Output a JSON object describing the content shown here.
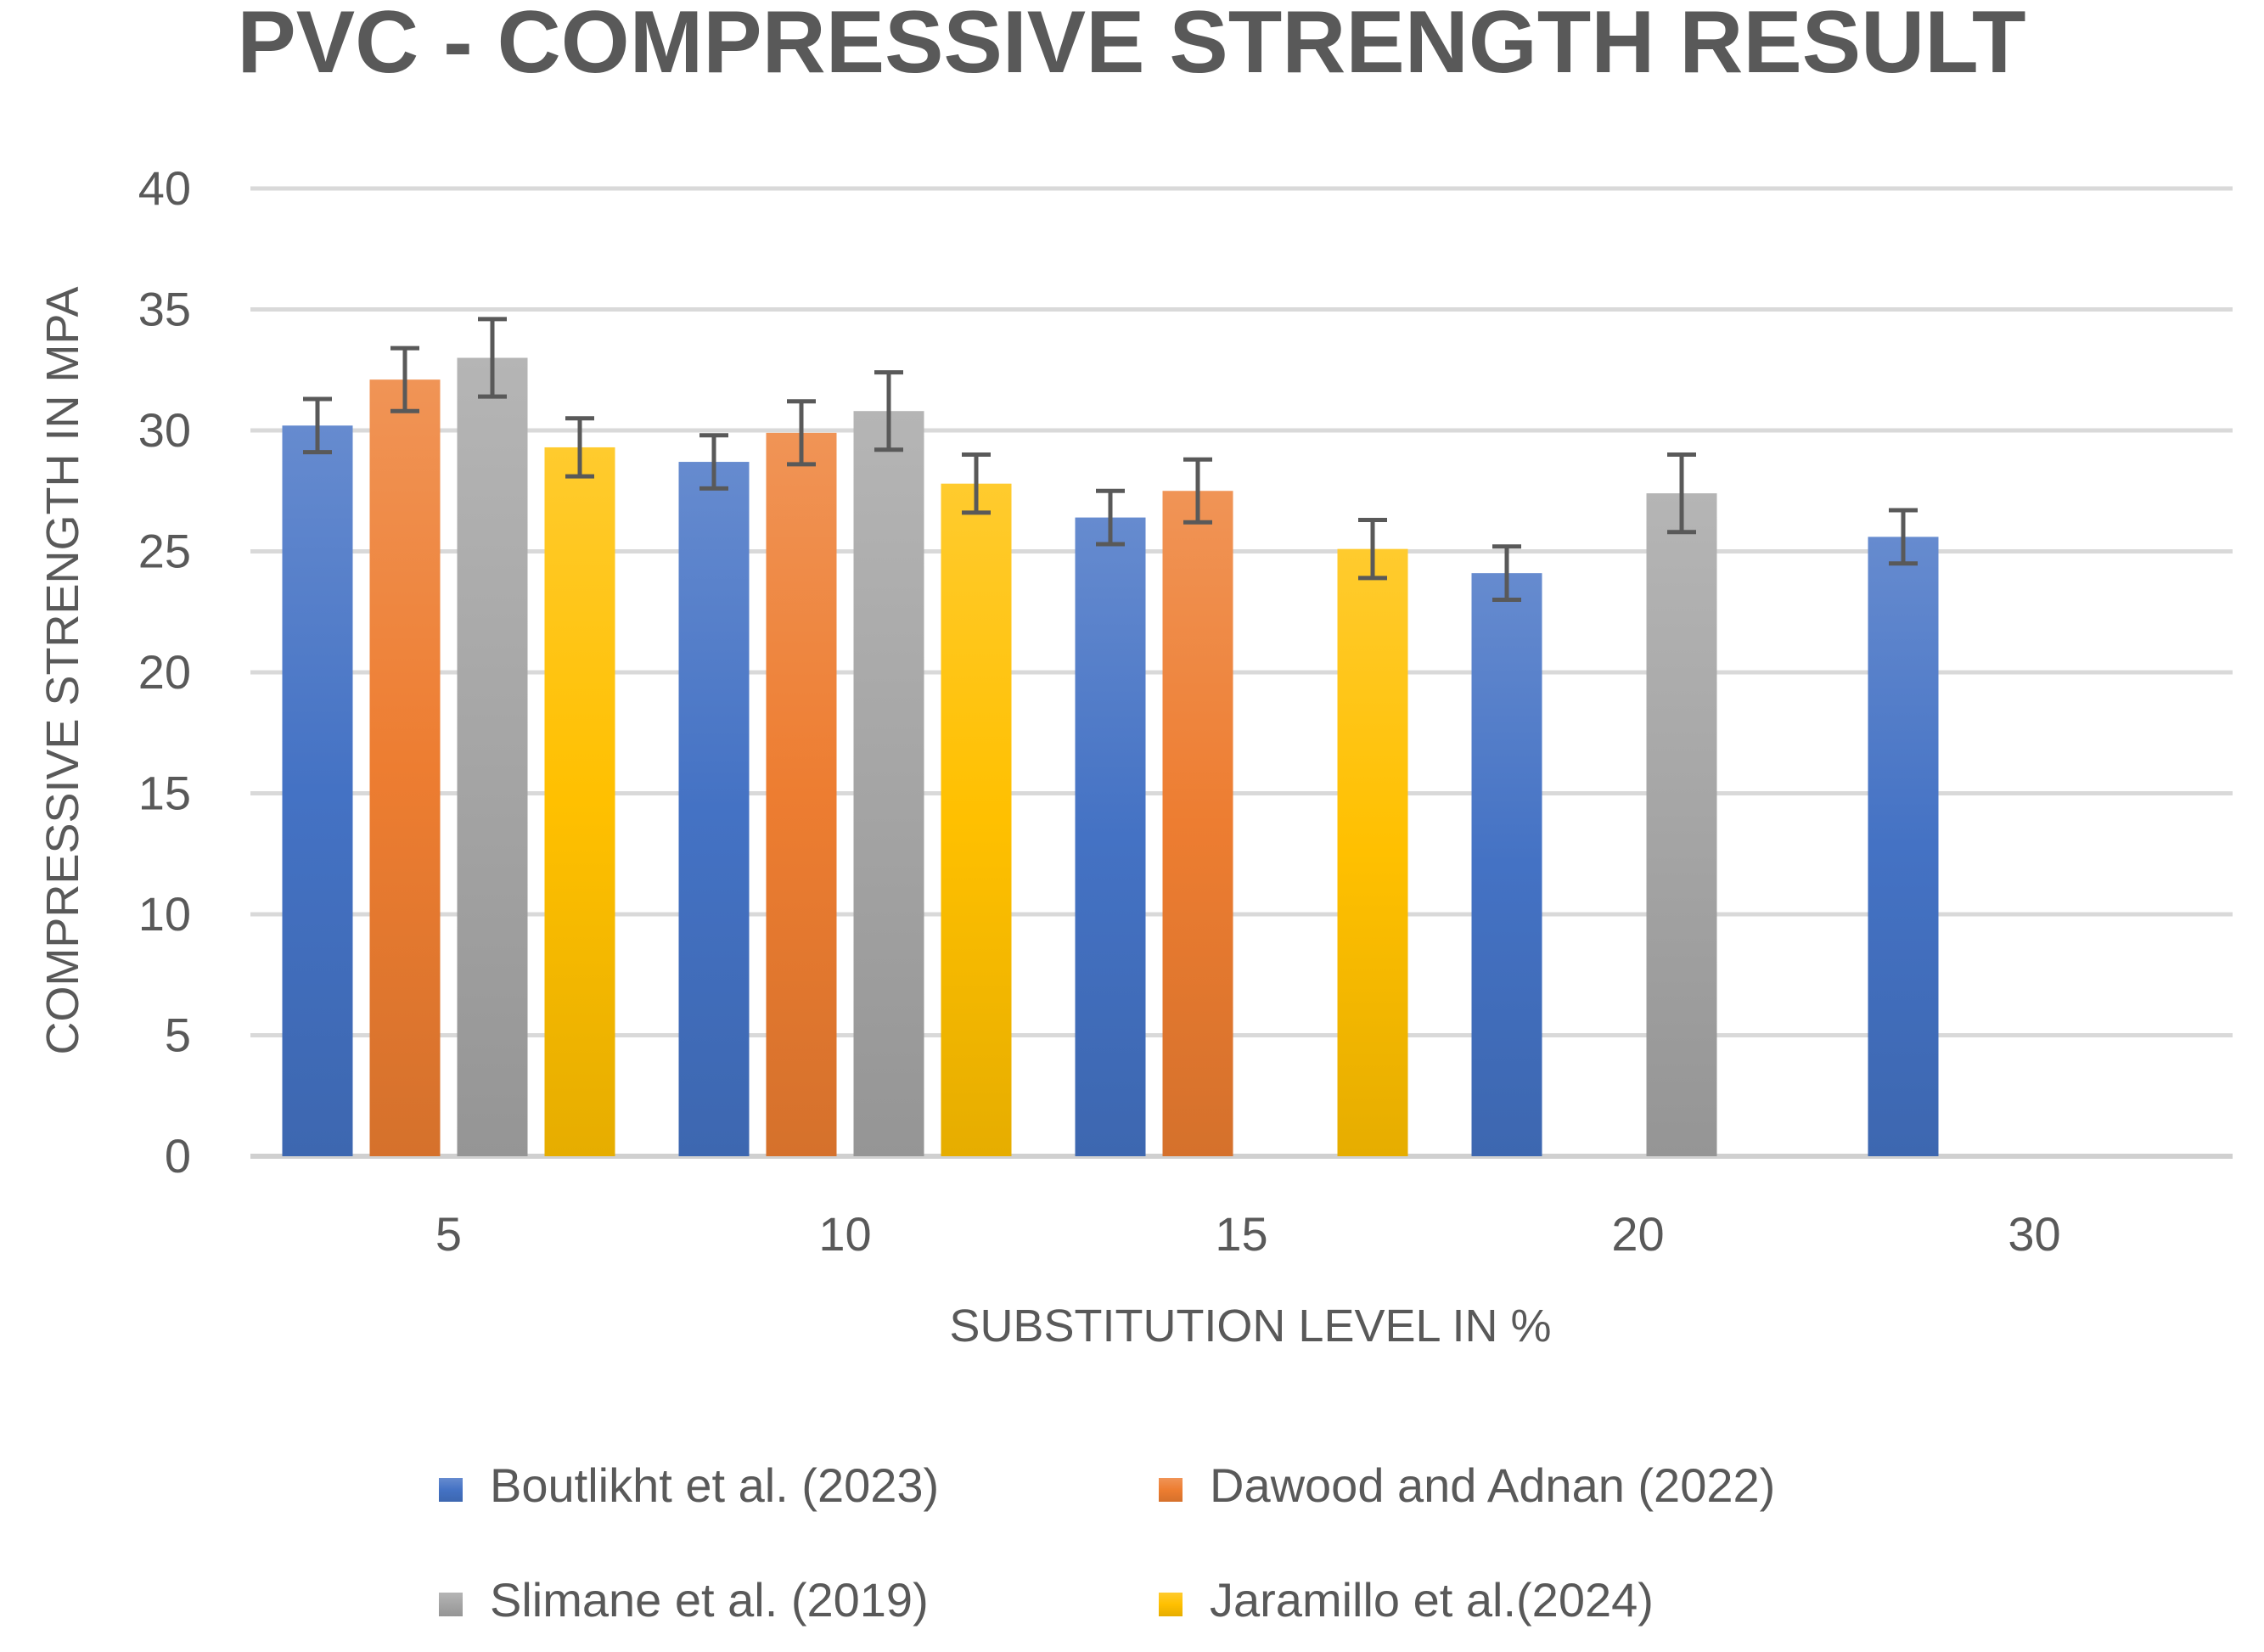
{
  "chart_data": {
    "type": "bar",
    "title": "PVC - COMPRESSIVE STRENGTH RESULT",
    "xlabel": "SUBSTITUTION LEVEL IN %",
    "ylabel": "COMPRESSIVE STRENGTH IN MPA",
    "ylim": [
      0,
      40
    ],
    "yticks": [
      0,
      5,
      10,
      15,
      20,
      25,
      30,
      35,
      40
    ],
    "grid": true,
    "legend_position": "bottom",
    "categories": [
      "5",
      "10",
      "15",
      "20",
      "30"
    ],
    "series": [
      {
        "name": "Boutlikht et al. (2023)",
        "color": "#4472C4",
        "values": [
          30.2,
          28.7,
          26.4,
          24.1,
          25.6
        ],
        "errors": [
          1.1,
          1.1,
          1.1,
          1.1,
          1.1
        ]
      },
      {
        "name": "Dawood and Adnan (2022)",
        "color": "#ED7D31",
        "values": [
          32.1,
          29.9,
          27.5,
          null,
          null
        ],
        "errors": [
          1.3,
          1.3,
          1.3,
          null,
          null
        ]
      },
      {
        "name": "Slimane et al. (2019)",
        "color": "#A5A5A5",
        "values": [
          33.0,
          30.8,
          null,
          27.4,
          null
        ],
        "errors": [
          1.6,
          1.6,
          null,
          1.6,
          null
        ]
      },
      {
        "name": "Jaramillo et al.(2024)",
        "color": "#FFC000",
        "values": [
          29.3,
          27.8,
          25.1,
          null,
          null
        ],
        "errors": [
          1.2,
          1.2,
          1.2,
          null,
          null
        ]
      }
    ]
  }
}
